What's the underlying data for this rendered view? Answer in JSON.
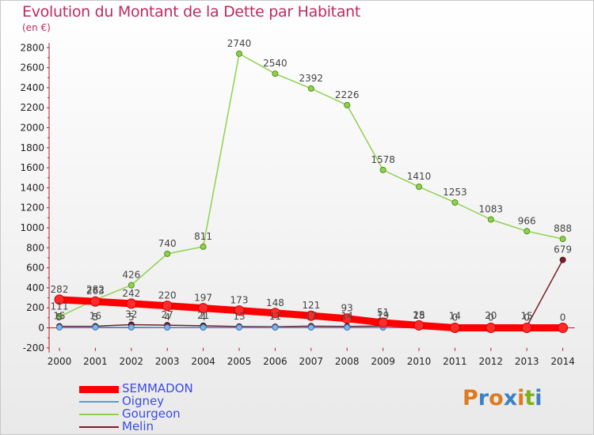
{
  "title": "Evolution du Montant de la Dette par Habitant",
  "subtitle": "(en €)",
  "logo": {
    "text": "Proxiti",
    "letters": [
      "P",
      "r",
      "o",
      "x",
      "i",
      "t",
      "i"
    ],
    "colors": [
      "#e07a1f",
      "#3b82c4",
      "#e07a1f",
      "#3b82c4",
      "#e07a1f",
      "#7ab317",
      "#3b82c4"
    ]
  },
  "chart_data": {
    "type": "line",
    "title": "Evolution du Montant de la Dette par Habitant",
    "subtitle": "(en €)",
    "x": [
      "2000",
      "2001",
      "2002",
      "2003",
      "2004",
      "2005",
      "2006",
      "2007",
      "2008",
      "2009",
      "2010",
      "2011",
      "2012",
      "2013",
      "2014"
    ],
    "ylim": [
      -200,
      2800
    ],
    "yticks": [
      -200,
      0,
      200,
      400,
      600,
      800,
      1000,
      1200,
      1400,
      1600,
      1800,
      2000,
      2200,
      2400,
      2600,
      2800
    ],
    "grid": false,
    "legend_position": "bottom-left",
    "series": [
      {
        "name": "SEMMADON",
        "color": "#ff0000",
        "values": [
          282,
          263,
          242,
          220,
          197,
          173,
          148,
          121,
          93,
          51,
          25,
          0,
          0,
          0,
          0
        ],
        "labels": [
          "282",
          "263",
          "242",
          "220",
          "197",
          "173",
          "148",
          "121",
          "93",
          "51",
          "25",
          "0",
          "0",
          "0",
          "0"
        ]
      },
      {
        "name": "Oigney",
        "color": "#5b9bd5",
        "values": [
          5,
          5,
          5,
          4,
          4,
          4,
          4,
          4,
          4,
          4,
          4,
          4,
          4,
          4,
          5
        ],
        "labels": [
          "5",
          "5",
          "5",
          "4",
          "4",
          "",
          "",
          "",
          "",
          "",
          "",
          "",
          "",
          "",
          ""
        ]
      },
      {
        "name": "Gourgeon",
        "color": "#8fd14f",
        "values": [
          111,
          282,
          426,
          740,
          811,
          2740,
          2540,
          2392,
          2226,
          1578,
          1410,
          1253,
          1083,
          966,
          888
        ],
        "labels": [
          "111",
          "282",
          "426",
          "740",
          "811",
          "2740",
          "2540",
          "2392",
          "2226",
          "1578",
          "1410",
          "1253",
          "1083",
          "966",
          "888"
        ]
      },
      {
        "name": "Melin",
        "color": "#7b1e2a",
        "values": [
          15,
          16,
          32,
          27,
          21,
          13,
          11,
          17,
          14,
          19,
          18,
          14,
          20,
          15,
          679
        ],
        "labels": [
          "15",
          "16",
          "32",
          "27",
          "21",
          "13",
          "11",
          "17",
          "14",
          "19",
          "18",
          "14",
          "20",
          "15",
          "679"
        ]
      }
    ]
  }
}
